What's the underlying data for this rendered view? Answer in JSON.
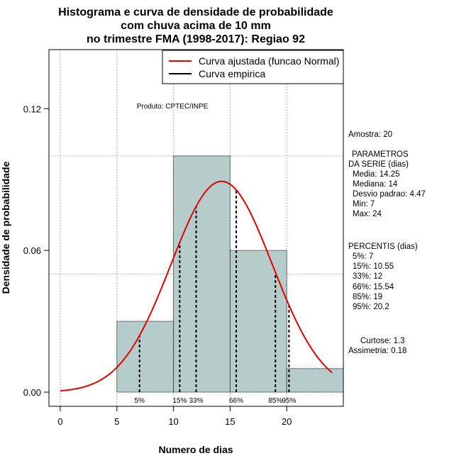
{
  "chart_data": {
    "type": "bar",
    "title": [
      "Histograma e curva de densidade de probabilidade",
      "com chuva acima de 10 mm",
      "no trimestre FMA (1998-2017): Regiao 92"
    ],
    "xlabel": "Numero de dias",
    "ylabel": "Densidade de probabilidade",
    "xlim": [
      -1,
      25
    ],
    "ylim": [
      -0.006,
      0.145
    ],
    "x_ticks": [
      0,
      5,
      10,
      15,
      20
    ],
    "y_ticks": [
      0.0,
      0.06,
      0.12
    ],
    "y_tick_labels": [
      "0.00",
      "0.06",
      "0.12"
    ],
    "grid": true,
    "grid_x": [
      0,
      5,
      10,
      15,
      20
    ],
    "grid_y": [
      0.05,
      0.1
    ],
    "bins": [
      {
        "x0": 5,
        "x1": 10,
        "density": 0.03
      },
      {
        "x0": 10,
        "x1": 15,
        "density": 0.1
      },
      {
        "x0": 15,
        "x1": 20,
        "density": 0.06
      },
      {
        "x0": 20,
        "x1": 25,
        "density": 0.01
      }
    ],
    "bar_color": "#b5cccb",
    "normal_curve": {
      "mean": 14.25,
      "sd": 4.47,
      "x_from": 0,
      "x_to": 24,
      "color": "#e00000"
    },
    "percentile_lines": [
      {
        "label": "5%",
        "value": 7
      },
      {
        "label": "15%",
        "value": 10.55
      },
      {
        "label": "33%",
        "value": 12
      },
      {
        "label": "66%",
        "value": 15.54
      },
      {
        "label": "85%",
        "value": 19
      },
      {
        "label": "95%",
        "value": 20.2
      }
    ],
    "legend": {
      "position": "top-right",
      "entries": [
        {
          "label": "Curva ajustada (funcao Normal)",
          "color": "#e00000"
        },
        {
          "label": "Curva empirica",
          "color": "#000000"
        }
      ]
    },
    "annotation": "Produto: CPTEC/INPE"
  },
  "side_panel": {
    "amostra": "Amostra: 20",
    "params_title_1": "PARAMETROS",
    "params_title_2": "DA SERIE (dias)",
    "params": [
      "Media: 14.25",
      "Mediana: 14",
      "Desvio padrao: 4.47",
      "Min: 7",
      "Max: 24"
    ],
    "percentis_title": "PERCENTIS (dias)",
    "percentis": [
      "5%: 7",
      "15%: 10.55",
      "33%: 12",
      "66%: 15.54",
      "85%: 19",
      "95%: 20.2"
    ],
    "curtose": "Curtose: 1.3",
    "assimetria": "Assimetria: 0.18"
  }
}
